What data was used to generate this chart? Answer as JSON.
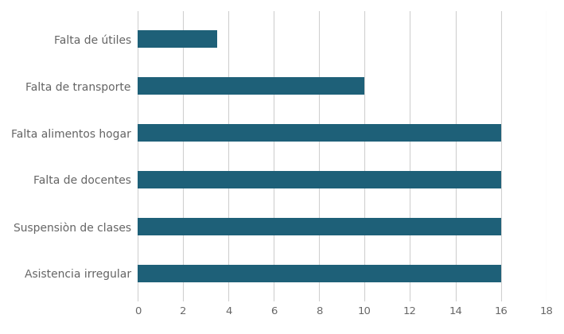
{
  "categories": [
    "Asistencia irregular",
    "Suspensiòn de clases",
    "Falta de docentes",
    "Falta alimentos hogar",
    "Falta de transporte",
    "Falta de útiles"
  ],
  "values": [
    16,
    16,
    16,
    16,
    10,
    3.5
  ],
  "bar_color": "#1e6078",
  "xlim": [
    0,
    18
  ],
  "xticks": [
    0,
    2,
    4,
    6,
    8,
    10,
    12,
    14,
    16,
    18
  ],
  "background_color": "#ffffff",
  "grid_color": "#d0d0d0",
  "bar_height": 0.38,
  "tick_fontsize": 9.5,
  "label_fontsize": 10,
  "label_color": "#666666"
}
